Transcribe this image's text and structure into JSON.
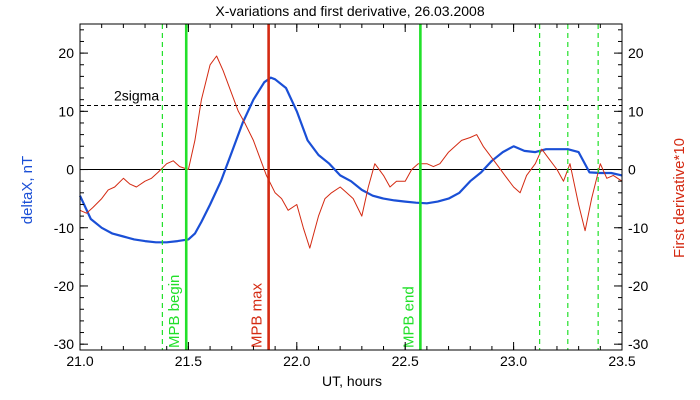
{
  "chart_data": {
    "type": "line",
    "title": "X-variations and first derivative, 26.03.2008",
    "xlabel": "UT, hours",
    "ylabel_left": "deltaX, nT",
    "ylabel_right": "First derivative*10",
    "xlim": [
      21.0,
      23.5
    ],
    "ylim": [
      -31,
      25
    ],
    "x_ticks": [
      21.0,
      21.5,
      22.0,
      22.5,
      23.0,
      23.5
    ],
    "x_tick_labels": [
      "21.0",
      "21.5",
      "22.0",
      "22.5",
      "23.0",
      "23.5"
    ],
    "y_ticks": [
      -30,
      -20,
      -10,
      0,
      10,
      20
    ],
    "y_tick_labels": [
      "-30",
      "-20",
      "-10",
      "0",
      "10",
      "20"
    ],
    "colors": {
      "deltaX": "#1a4fd6",
      "derivative": "#d42a12",
      "mpb_green": "#22e02a",
      "mpb_red": "#d42a12",
      "axis": "#000000"
    },
    "threshold": {
      "label": "2sigma",
      "value": 11
    },
    "zero_line": 0,
    "markers": [
      {
        "label": "MPB begin",
        "x": 21.49,
        "color": "#22e02a"
      },
      {
        "label": "MPB max",
        "x": 21.87,
        "color": "#d42a12"
      },
      {
        "label": "MPB end",
        "x": 22.57,
        "color": "#22e02a"
      }
    ],
    "dashed_markers": [
      21.38,
      23.12,
      23.25,
      23.39
    ],
    "series": [
      {
        "color": "#1a4fd6",
        "x": [
          21.0,
          21.05,
          21.1,
          21.15,
          21.2,
          21.25,
          21.3,
          21.35,
          21.4,
          21.45,
          21.5,
          21.53,
          21.56,
          21.6,
          21.65,
          21.7,
          21.75,
          21.8,
          21.85,
          21.88,
          21.9,
          21.95,
          22.0,
          22.05,
          22.1,
          22.15,
          22.2,
          22.25,
          22.3,
          22.35,
          22.4,
          22.45,
          22.5,
          22.55,
          22.6,
          22.65,
          22.7,
          22.75,
          22.8,
          22.85,
          22.9,
          22.95,
          23.0,
          23.05,
          23.1,
          23.15,
          23.2,
          23.25,
          23.3,
          23.35,
          23.4,
          23.45,
          23.5
        ],
        "y": [
          -4.5,
          -8.5,
          -10,
          -11,
          -11.5,
          -12,
          -12.3,
          -12.5,
          -12.5,
          -12.3,
          -12,
          -11,
          -9,
          -6,
          -2,
          3,
          8,
          12,
          15,
          15.8,
          15.5,
          14,
          10,
          5,
          2.5,
          1,
          -1,
          -2,
          -3.5,
          -4.5,
          -5,
          -5.3,
          -5.5,
          -5.7,
          -5.8,
          -5.5,
          -5,
          -4,
          -2,
          -0.5,
          1.5,
          3,
          4,
          3.2,
          3,
          3.5,
          3.5,
          3.5,
          3,
          -0.5,
          -0.6,
          -0.6,
          -1
        ]
      },
      {
        "color": "#d42a12",
        "x": [
          21.0,
          21.03,
          21.06,
          21.1,
          21.13,
          21.16,
          21.2,
          21.23,
          21.26,
          21.3,
          21.33,
          21.36,
          21.4,
          21.43,
          21.46,
          21.5,
          21.53,
          21.56,
          21.6,
          21.63,
          21.66,
          21.7,
          21.73,
          21.76,
          21.8,
          21.83,
          21.86,
          21.9,
          21.93,
          21.96,
          22.0,
          22.03,
          22.06,
          22.1,
          22.13,
          22.16,
          22.2,
          22.23,
          22.26,
          22.3,
          22.33,
          22.36,
          22.4,
          22.43,
          22.46,
          22.5,
          22.53,
          22.56,
          22.6,
          22.63,
          22.66,
          22.7,
          22.73,
          22.76,
          22.8,
          22.83,
          22.86,
          22.9,
          22.93,
          22.96,
          23.0,
          23.03,
          23.06,
          23.1,
          23.13,
          23.16,
          23.2,
          23.23,
          23.26,
          23.3,
          23.33,
          23.36,
          23.4,
          23.43,
          23.46,
          23.5
        ],
        "y": [
          -7,
          -7.5,
          -6.5,
          -5,
          -3.5,
          -3,
          -1.5,
          -2.5,
          -3,
          -2,
          -1.5,
          -0.5,
          1,
          1.5,
          0.5,
          0,
          5,
          12,
          18,
          19.5,
          17,
          13,
          10,
          8,
          5,
          2,
          -1,
          -4,
          -5,
          -7,
          -6,
          -10,
          -13.5,
          -8,
          -5,
          -4,
          -3,
          -4,
          -5,
          -8,
          -3,
          1,
          -1,
          -3,
          -2,
          -2,
          0,
          1,
          1,
          0.5,
          1,
          3,
          4,
          5,
          5.5,
          6,
          4,
          2,
          0.5,
          -1,
          -3,
          -4,
          -1,
          1,
          3.5,
          2,
          0,
          -2,
          1,
          -6,
          -10.5,
          -5,
          1,
          -1.5,
          -1,
          -2
        ]
      }
    ]
  }
}
